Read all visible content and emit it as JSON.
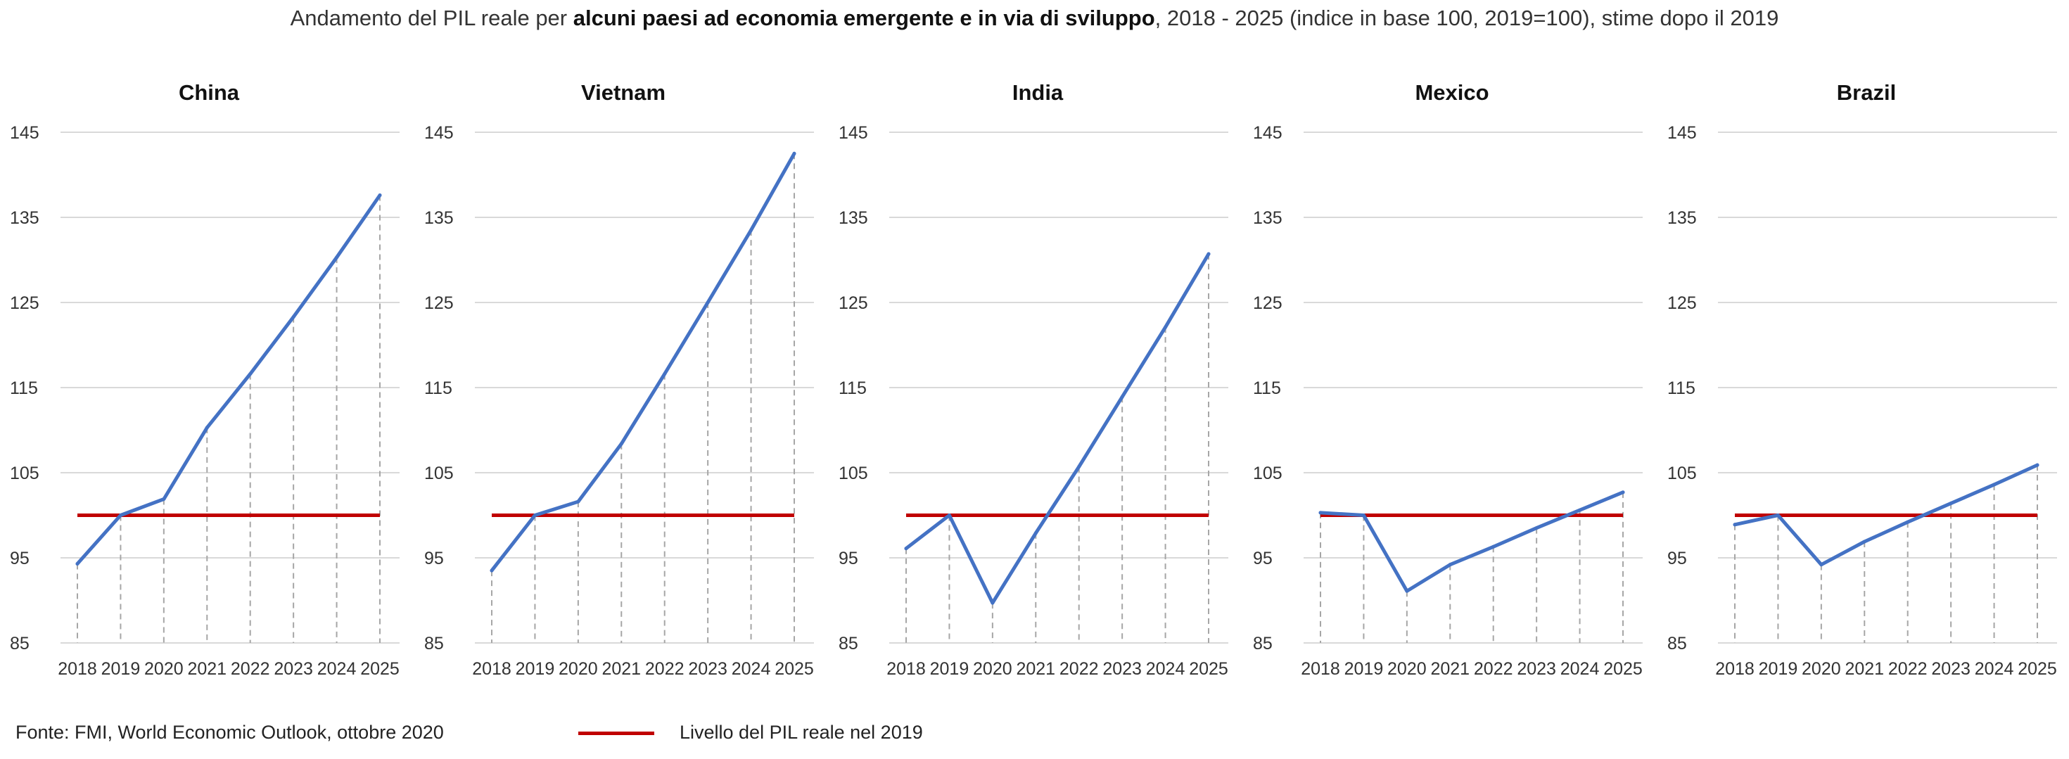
{
  "title": {
    "pre": "Andamento del PIL reale per ",
    "bold": "alcuni paesi ad economia emergente e in via di sviluppo",
    "post": ", 2018 - 2025 (indice in base 100, 2019=100), stime dopo il 2019"
  },
  "colors": {
    "series": "#4472c4",
    "baseline": "#c00000",
    "grid": "#d9d9d9",
    "dash": "#a6a6a6"
  },
  "footer": {
    "source": "Fonte: FMI, World Economic Outlook, ottobre 2020",
    "legend_label": "Livello del PIL reale nel 2019"
  },
  "chart_data": [
    {
      "type": "line",
      "title": "China",
      "categories": [
        "2018",
        "2019",
        "2020",
        "2021",
        "2022",
        "2023",
        "2024",
        "2025"
      ],
      "values": [
        94.3,
        100,
        101.9,
        110.3,
        116.6,
        123.3,
        130.3,
        137.6
      ],
      "baseline": 100,
      "ylim": [
        85,
        145
      ],
      "yticks": [
        85,
        95,
        105,
        115,
        125,
        135,
        145
      ],
      "grid": true
    },
    {
      "type": "line",
      "title": "Vietnam",
      "categories": [
        "2018",
        "2019",
        "2020",
        "2021",
        "2022",
        "2023",
        "2024",
        "2025"
      ],
      "values": [
        93.5,
        100,
        101.6,
        108.4,
        116.6,
        125.0,
        133.5,
        142.5
      ],
      "baseline": 100,
      "ylim": [
        85,
        145
      ],
      "yticks": [
        85,
        95,
        105,
        115,
        125,
        135,
        145
      ],
      "grid": true
    },
    {
      "type": "line",
      "title": "India",
      "categories": [
        "2018",
        "2019",
        "2020",
        "2021",
        "2022",
        "2023",
        "2024",
        "2025"
      ],
      "values": [
        96.1,
        100,
        89.7,
        97.9,
        105.7,
        113.9,
        122.1,
        130.7
      ],
      "baseline": 100,
      "ylim": [
        85,
        145
      ],
      "yticks": [
        85,
        95,
        105,
        115,
        125,
        135,
        145
      ],
      "grid": true
    },
    {
      "type": "line",
      "title": "Mexico",
      "categories": [
        "2018",
        "2019",
        "2020",
        "2021",
        "2022",
        "2023",
        "2024",
        "2025"
      ],
      "values": [
        100.3,
        100,
        91.1,
        94.2,
        96.3,
        98.5,
        100.6,
        102.7
      ],
      "baseline": 100,
      "ylim": [
        85,
        145
      ],
      "yticks": [
        85,
        95,
        105,
        115,
        125,
        135,
        145
      ],
      "grid": true
    },
    {
      "type": "line",
      "title": "Brazil",
      "categories": [
        "2018",
        "2019",
        "2020",
        "2021",
        "2022",
        "2023",
        "2024",
        "2025"
      ],
      "values": [
        98.9,
        100,
        94.2,
        96.9,
        99.2,
        101.4,
        103.6,
        105.9
      ],
      "baseline": 100,
      "ylim": [
        85,
        145
      ],
      "yticks": [
        85,
        95,
        105,
        115,
        125,
        135,
        145
      ],
      "grid": true
    }
  ]
}
